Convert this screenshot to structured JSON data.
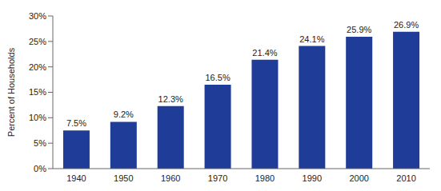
{
  "chart_data": {
    "type": "bar",
    "y_label": "Percent of Households",
    "categories": [
      "1940",
      "1950",
      "1960",
      "1970",
      "1980",
      "1990",
      "2000",
      "2010"
    ],
    "values": [
      7.5,
      9.2,
      12.3,
      16.5,
      21.4,
      24.1,
      25.9,
      26.9
    ],
    "value_labels": [
      "7.5%",
      "9.2%",
      "12.3%",
      "16.5%",
      "21.4%",
      "24.1%",
      "25.9%",
      "26.9%"
    ],
    "color": "#1f3c98",
    "ylim": [
      0,
      30
    ],
    "yticks": [
      {
        "value": 0,
        "label": "0%"
      },
      {
        "value": 5,
        "label": "5%"
      },
      {
        "value": 10,
        "label": "10%"
      },
      {
        "value": 15,
        "label": "15%"
      },
      {
        "value": 20,
        "label": "20%"
      },
      {
        "value": 25,
        "label": "25%"
      },
      {
        "value": 30,
        "label": "30%"
      }
    ],
    "grid": false,
    "data_labels": true
  }
}
